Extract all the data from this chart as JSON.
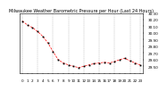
{
  "title": "Milwaukee Weather Barometric Pressure per Hour (Last 24 Hours)",
  "hours": [
    0,
    1,
    2,
    3,
    4,
    5,
    6,
    7,
    8,
    9,
    10,
    11,
    12,
    13,
    14,
    15,
    16,
    17,
    18,
    19,
    20,
    21,
    22,
    23
  ],
  "pressure": [
    30.18,
    30.12,
    30.08,
    30.02,
    29.95,
    29.85,
    29.72,
    29.6,
    29.55,
    29.52,
    29.5,
    29.48,
    29.5,
    29.52,
    29.54,
    29.55,
    29.56,
    29.55,
    29.57,
    29.6,
    29.62,
    29.58,
    29.55,
    29.52
  ],
  "line_color": "#ff0000",
  "marker_color": "#000000",
  "bg_color": "#ffffff",
  "grid_color": "#888888",
  "ylim": [
    29.4,
    30.3
  ],
  "yticks": [
    29.5,
    29.6,
    29.7,
    29.8,
    29.9,
    30.0,
    30.1,
    30.2,
    30.3
  ],
  "ytick_labels": [
    "29.50",
    "29.60",
    "29.70",
    "29.80",
    "29.90",
    "30.00",
    "30.10",
    "30.20",
    "30.30"
  ],
  "xlabel_fontsize": 3.0,
  "ylabel_fontsize": 3.0,
  "title_fontsize": 3.5,
  "vgrid_positions": [
    0,
    3,
    6,
    9,
    12,
    15,
    18,
    21,
    23
  ]
}
